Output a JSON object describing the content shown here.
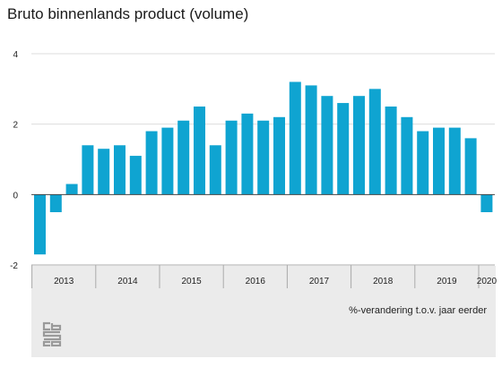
{
  "title": "Bruto binnenlands product (volume)",
  "unit_note": "%-verandering t.o.v. jaar eerder",
  "logo": {
    "name": "cbs-logo"
  },
  "colors": {
    "bar": "#0fa4d1",
    "grid": "#dddddd",
    "zero_line": "#444444",
    "axis": "#aaaaaa",
    "panel": "#ebebeb",
    "logo": "#9a9a9a"
  },
  "chart_data": {
    "type": "bar",
    "title": "Bruto binnenlands product (volume)",
    "xlabel": "",
    "ylabel": "%-verandering t.o.v. jaar eerder",
    "ylim": [
      -2,
      4
    ],
    "y_ticks": [
      4,
      2,
      0,
      -2
    ],
    "grid": true,
    "categories": [
      "2013 K1",
      "2013 K2",
      "2013 K3",
      "2013 K4",
      "2014 K1",
      "2014 K2",
      "2014 K3",
      "2014 K4",
      "2015 K1",
      "2015 K2",
      "2015 K3",
      "2015 K4",
      "2016 K1",
      "2016 K2",
      "2016 K3",
      "2016 K4",
      "2017 K1",
      "2017 K2",
      "2017 K3",
      "2017 K4",
      "2018 K1",
      "2018 K2",
      "2018 K3",
      "2018 K4",
      "2019 K1",
      "2019 K2",
      "2019 K3",
      "2019 K4",
      "2020 K1"
    ],
    "values": [
      -1.7,
      -0.5,
      0.3,
      1.4,
      1.3,
      1.4,
      1.1,
      1.8,
      1.9,
      2.1,
      2.5,
      1.4,
      2.1,
      2.3,
      2.1,
      2.2,
      3.2,
      3.1,
      2.8,
      2.6,
      2.8,
      3.0,
      2.5,
      2.2,
      1.8,
      1.9,
      1.9,
      1.6,
      -0.5
    ],
    "year_labels": [
      "2013",
      "2014",
      "2015",
      "2016",
      "2017",
      "2018",
      "2019",
      "2020"
    ],
    "quarters_per_year": 4
  }
}
